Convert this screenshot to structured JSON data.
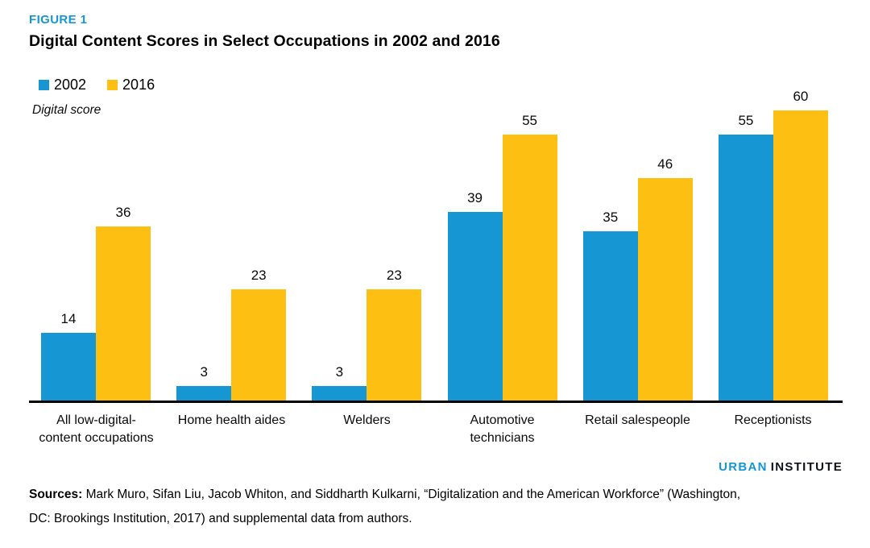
{
  "figure_label": "FIGURE 1",
  "title": "Digital Content Scores in Select Occupations in 2002 and 2016",
  "y_axis_label": "Digital score",
  "legend": [
    {
      "label": "2002",
      "color": "#1696d2"
    },
    {
      "label": "2016",
      "color": "#fdbf11"
    }
  ],
  "x_labels": [
    "All low-digital-\ncontent occupations",
    "Home health aides",
    "Welders",
    "Automotive\ntechnicians",
    "Retail salespeople",
    "Receptionists"
  ],
  "chart_data": {
    "type": "bar",
    "title": "Digital Content Scores in Select Occupations in 2002 and 2016",
    "xlabel": "",
    "ylabel": "Digital score",
    "ylim": [
      0,
      60
    ],
    "grid": false,
    "legend_position": "top-left",
    "value_labels": true,
    "categories": [
      "All low-digital-content occupations",
      "Home health aides",
      "Welders",
      "Automotive technicians",
      "Retail salespeople",
      "Receptionists"
    ],
    "series": [
      {
        "name": "2002",
        "color": "#1696d2",
        "values": [
          14,
          3,
          3,
          39,
          35,
          55
        ]
      },
      {
        "name": "2016",
        "color": "#fdbf11",
        "values": [
          36,
          23,
          23,
          55,
          46,
          60
        ]
      }
    ]
  },
  "branding": {
    "urban": "URBAN",
    "institute": "INSTITUTE"
  },
  "sources": {
    "label": "Sources:",
    "text": " Mark Muro, Sifan Liu, Jacob Whiton, and Siddharth Kulkarni, “Digitalization and the American Workforce” (Washington,\nDC: Brookings Institution, 2017) and supplemental data from authors."
  },
  "colors": {
    "accent_blue": "#1696d2",
    "series_yellow": "#fdbf11",
    "logo_dark": "#0d1117",
    "axis": "#000000",
    "text": "#000000"
  }
}
